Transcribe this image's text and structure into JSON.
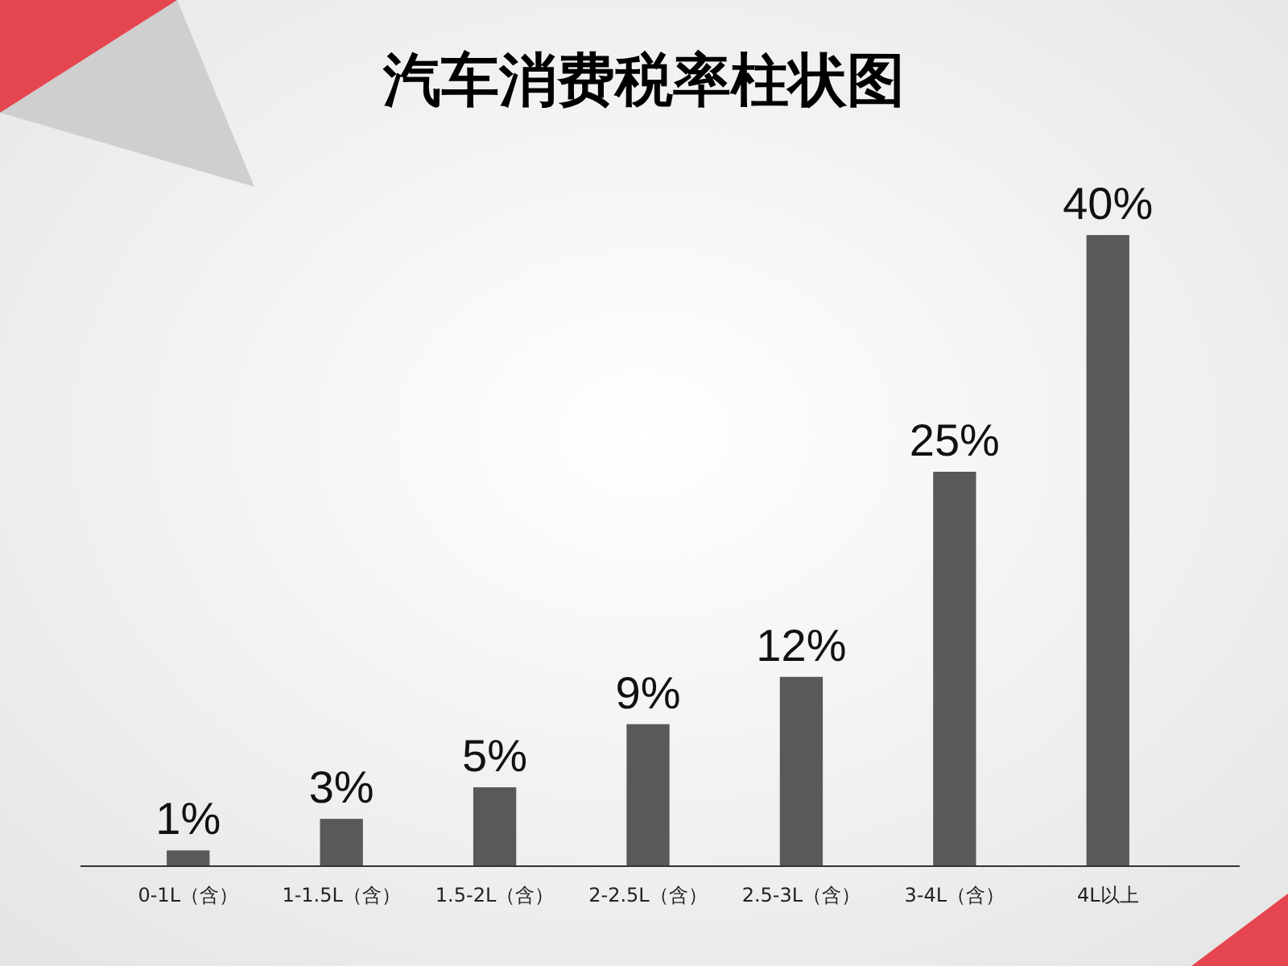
{
  "chart_data": {
    "type": "bar",
    "title": "汽车消费税率柱状图",
    "categories": [
      "0-1L（含）",
      "1-1.5L（含）",
      "1.5-2L（含）",
      "2-2.5L（含）",
      "2.5-3L（含）",
      "3-4L（含）",
      "4L以上"
    ],
    "values": [
      1,
      3,
      5,
      9,
      12,
      25,
      40
    ],
    "value_labels": [
      "1%",
      "3%",
      "5%",
      "9%",
      "12%",
      "25%",
      "40%"
    ],
    "color": "#58595b"
  }
}
